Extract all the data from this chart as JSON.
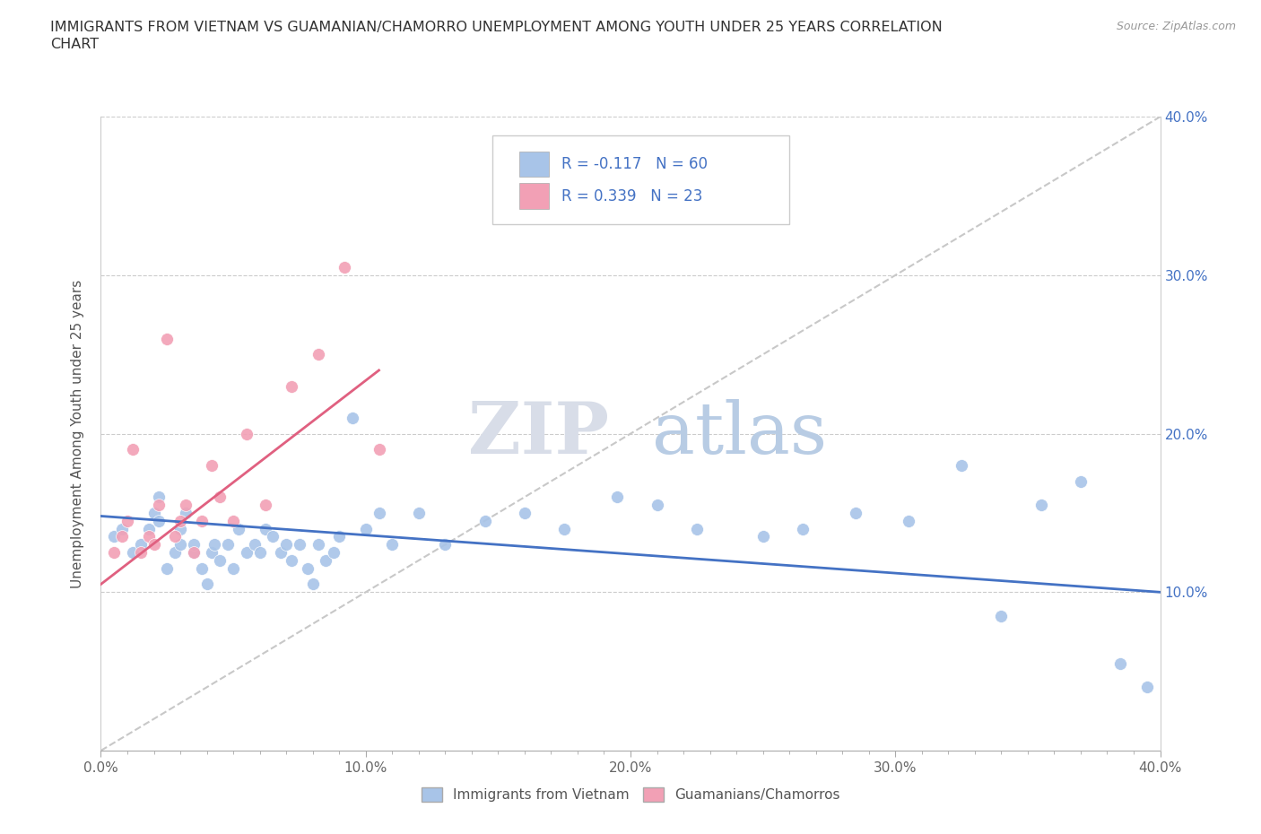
{
  "title_line1": "IMMIGRANTS FROM VIETNAM VS GUAMANIAN/CHAMORRO UNEMPLOYMENT AMONG YOUTH UNDER 25 YEARS CORRELATION",
  "title_line2": "CHART",
  "source_text": "Source: ZipAtlas.com",
  "ylabel": "Unemployment Among Youth under 25 years",
  "xmin": 0.0,
  "xmax": 0.4,
  "ymin": 0.0,
  "ymax": 0.4,
  "xtick_labels": [
    "0.0%",
    "",
    "",
    "",
    "",
    "",
    "",
    "",
    "",
    "",
    "10.0%",
    "",
    "",
    "",
    "",
    "",
    "",
    "",
    "",
    "",
    "20.0%",
    "",
    "",
    "",
    "",
    "",
    "",
    "",
    "",
    "",
    "30.0%",
    "",
    "",
    "",
    "",
    "",
    "",
    "",
    "",
    "",
    "40.0%"
  ],
  "xtick_vals": [
    0.0,
    0.01,
    0.02,
    0.03,
    0.04,
    0.05,
    0.06,
    0.07,
    0.08,
    0.09,
    0.1,
    0.11,
    0.12,
    0.13,
    0.14,
    0.15,
    0.16,
    0.17,
    0.18,
    0.19,
    0.2,
    0.21,
    0.22,
    0.23,
    0.24,
    0.25,
    0.26,
    0.27,
    0.28,
    0.29,
    0.3,
    0.31,
    0.32,
    0.33,
    0.34,
    0.35,
    0.36,
    0.37,
    0.38,
    0.39,
    0.4
  ],
  "major_xtick_vals": [
    0.0,
    0.1,
    0.2,
    0.3,
    0.4
  ],
  "major_xtick_labels": [
    "0.0%",
    "10.0%",
    "20.0%",
    "30.0%",
    "40.0%"
  ],
  "ytick_labels": [
    "10.0%",
    "20.0%",
    "30.0%",
    "40.0%"
  ],
  "ytick_vals": [
    0.1,
    0.2,
    0.3,
    0.4
  ],
  "right_ytick_labels": [
    "10.0%",
    "20.0%",
    "30.0%",
    "40.0%"
  ],
  "right_ytick_vals": [
    0.1,
    0.2,
    0.3,
    0.4
  ],
  "blue_color": "#a8c4e8",
  "pink_color": "#f2a0b5",
  "blue_line_color": "#4472c4",
  "pink_line_color": "#e06080",
  "trendline_dashed_color": "#c8c8c8",
  "legend_R1": "R = -0.117",
  "legend_N1": "N = 60",
  "legend_R2": "R = 0.339",
  "legend_N2": "N = 23",
  "legend_label1": "Immigrants from Vietnam",
  "legend_label2": "Guamanians/Chamorros",
  "watermark_zip": "ZIP",
  "watermark_atlas": "atlas",
  "blue_scatter_x": [
    0.005,
    0.008,
    0.012,
    0.015,
    0.018,
    0.02,
    0.022,
    0.022,
    0.025,
    0.028,
    0.03,
    0.03,
    0.032,
    0.035,
    0.035,
    0.038,
    0.04,
    0.042,
    0.043,
    0.045,
    0.048,
    0.05,
    0.052,
    0.055,
    0.058,
    0.06,
    0.062,
    0.065,
    0.068,
    0.07,
    0.072,
    0.075,
    0.078,
    0.08,
    0.082,
    0.085,
    0.088,
    0.09,
    0.095,
    0.1,
    0.105,
    0.11,
    0.12,
    0.13,
    0.145,
    0.16,
    0.175,
    0.195,
    0.21,
    0.225,
    0.25,
    0.265,
    0.285,
    0.305,
    0.325,
    0.34,
    0.355,
    0.37,
    0.385,
    0.395
  ],
  "blue_scatter_y": [
    0.135,
    0.14,
    0.125,
    0.13,
    0.14,
    0.15,
    0.145,
    0.16,
    0.115,
    0.125,
    0.13,
    0.14,
    0.15,
    0.125,
    0.13,
    0.115,
    0.105,
    0.125,
    0.13,
    0.12,
    0.13,
    0.115,
    0.14,
    0.125,
    0.13,
    0.125,
    0.14,
    0.135,
    0.125,
    0.13,
    0.12,
    0.13,
    0.115,
    0.105,
    0.13,
    0.12,
    0.125,
    0.135,
    0.21,
    0.14,
    0.15,
    0.13,
    0.15,
    0.13,
    0.145,
    0.15,
    0.14,
    0.16,
    0.155,
    0.14,
    0.135,
    0.14,
    0.15,
    0.145,
    0.18,
    0.085,
    0.155,
    0.17,
    0.055,
    0.04
  ],
  "pink_scatter_x": [
    0.005,
    0.008,
    0.01,
    0.012,
    0.015,
    0.018,
    0.02,
    0.022,
    0.025,
    0.028,
    0.03,
    0.032,
    0.035,
    0.038,
    0.042,
    0.045,
    0.05,
    0.055,
    0.062,
    0.072,
    0.082,
    0.092,
    0.105
  ],
  "pink_scatter_y": [
    0.125,
    0.135,
    0.145,
    0.19,
    0.125,
    0.135,
    0.13,
    0.155,
    0.26,
    0.135,
    0.145,
    0.155,
    0.125,
    0.145,
    0.18,
    0.16,
    0.145,
    0.2,
    0.155,
    0.23,
    0.25,
    0.305,
    0.19
  ],
  "blue_trend_x": [
    0.0,
    0.4
  ],
  "blue_trend_y": [
    0.148,
    0.1
  ],
  "pink_trend_x": [
    0.0,
    0.105
  ],
  "pink_trend_y": [
    0.105,
    0.24
  ],
  "diag_line_x": [
    0.0,
    0.4
  ],
  "diag_line_y": [
    0.0,
    0.4
  ]
}
